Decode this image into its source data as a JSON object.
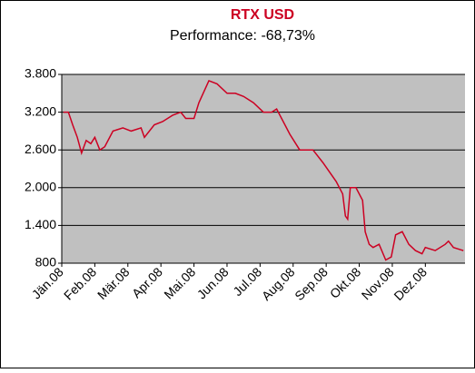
{
  "chart_data": {
    "type": "line",
    "title": "RTX USD",
    "subtitle": "Performance: -68,73%",
    "xlim": [
      0,
      12.2
    ],
    "xticks": [
      {
        "value": 0,
        "label": "Jän.08"
      },
      {
        "value": 1,
        "label": "Feb.08"
      },
      {
        "value": 2,
        "label": "Mär.08"
      },
      {
        "value": 3,
        "label": "Apr.08"
      },
      {
        "value": 4,
        "label": "Mai.08"
      },
      {
        "value": 5,
        "label": "Jun.08"
      },
      {
        "value": 6,
        "label": "Jul.08"
      },
      {
        "value": 7,
        "label": "Aug.08"
      },
      {
        "value": 8,
        "label": "Sep.08"
      },
      {
        "value": 9,
        "label": "Okt.08"
      },
      {
        "value": 10,
        "label": "Nov.08"
      },
      {
        "value": 11,
        "label": "Dez.08"
      }
    ],
    "ylim": [
      800,
      3800
    ],
    "yticks": [
      {
        "value": 800,
        "label": "800"
      },
      {
        "value": 1400,
        "label": "1.400"
      },
      {
        "value": 2000,
        "label": "2.000"
      },
      {
        "value": 2600,
        "label": "2.600"
      },
      {
        "value": 3200,
        "label": "3.200"
      },
      {
        "value": 3800,
        "label": "3.800"
      }
    ],
    "grid": true,
    "color": "#cc0022",
    "x": [
      0.05,
      0.2,
      0.33,
      0.47,
      0.6,
      0.74,
      0.88,
      1.0,
      1.15,
      1.3,
      1.55,
      1.85,
      2.1,
      2.4,
      2.5,
      2.8,
      3.05,
      3.35,
      3.6,
      3.75,
      4.0,
      4.15,
      4.45,
      4.7,
      5.0,
      5.25,
      5.5,
      5.8,
      6.1,
      6.35,
      6.5,
      6.75,
      6.9,
      7.2,
      7.6,
      7.9,
      8.3,
      8.5,
      8.58,
      8.65,
      8.73,
      8.9,
      9.1,
      9.18,
      9.3,
      9.42,
      9.6,
      9.8,
      9.97,
      10.1,
      10.3,
      10.5,
      10.7,
      10.9,
      11.0,
      11.3,
      11.6,
      11.7,
      11.85,
      12.15
    ],
    "values": [
      3200,
      3200,
      3000,
      2800,
      2550,
      2750,
      2700,
      2800,
      2600,
      2650,
      2900,
      2950,
      2900,
      2950,
      2800,
      3000,
      3050,
      3150,
      3200,
      3100,
      3100,
      3350,
      3700,
      3650,
      3500,
      3500,
      3450,
      3350,
      3200,
      3200,
      3250,
      3000,
      2850,
      2600,
      2600,
      2400,
      2100,
      1900,
      1550,
      1500,
      2000,
      2000,
      1800,
      1300,
      1100,
      1050,
      1100,
      850,
      900,
      1250,
      1300,
      1100,
      1000,
      950,
      1050,
      1000,
      1100,
      1150,
      1050,
      1000
    ]
  }
}
